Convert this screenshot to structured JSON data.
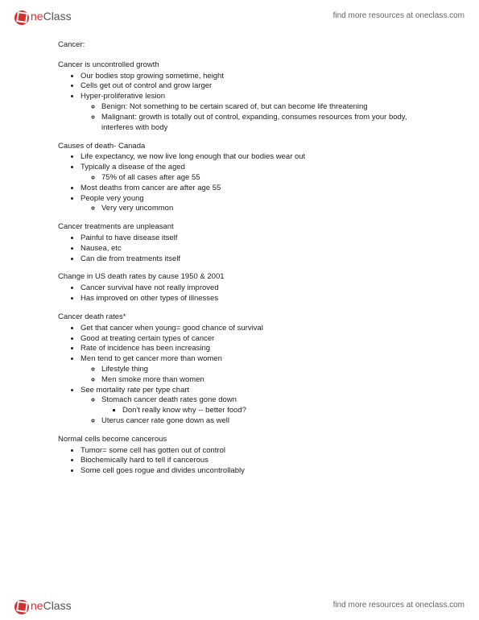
{
  "brand": {
    "one": "ne",
    "class": "Class",
    "tagline": "find more resources at oneclass.com"
  },
  "title": "Cancer:",
  "sections": [
    {
      "heading": "Cancer is uncontrolled growth",
      "items": [
        {
          "t": "Our bodies stop growing sometime, height"
        },
        {
          "t": "Cells get out of control and grow larger"
        },
        {
          "t": "Hyper-proliferative lesion",
          "sub": [
            {
              "t": "Benign: Not something to be certain scared of, but can become life threatening"
            },
            {
              "t": "Malignant: growth is totally out of control, expanding, consumes resources from your body, interferes with body"
            }
          ]
        }
      ]
    },
    {
      "heading": "Causes of death- Canada",
      "items": [
        {
          "t": "Life expectancy, we now live long enough that our bodies wear out"
        },
        {
          "t": "Typically a disease of the aged",
          "sub": [
            {
              "t": "75% of all cases after age 55"
            }
          ]
        },
        {
          "t": "Most deaths from cancer are after age 55"
        },
        {
          "t": "People very young",
          "sub": [
            {
              "t": "Very very uncommon"
            }
          ]
        }
      ]
    },
    {
      "heading": "Cancer treatments are unpleasant",
      "items": [
        {
          "t": "Painful to have disease itself"
        },
        {
          "t": "Nausea, etc"
        },
        {
          "t": "Can die from treatments itself"
        }
      ]
    },
    {
      "heading": "Change in US death rates by cause 1950 & 2001",
      "items": [
        {
          "t": "Cancer survival have not really improved"
        },
        {
          "t": "Has improved on other types of illnesses"
        }
      ]
    },
    {
      "heading": "Cancer death rates*",
      "items": [
        {
          "t": "Get that cancer when young= good chance of survival"
        },
        {
          "t": "Good at treating certain types of cancer"
        },
        {
          "t": "Rate of incidence has been increasing"
        },
        {
          "t": "Men tend to get cancer more than women",
          "sub": [
            {
              "t": "Lifestyle thing"
            },
            {
              "t": "Men smoke more than women"
            }
          ]
        },
        {
          "t": "See mortality rate per type chart",
          "sub": [
            {
              "t": "Stomach cancer death rates gone down",
              "sub": [
                {
                  "t": "Don't really know why -- better food?"
                }
              ]
            },
            {
              "t": "Uterus cancer rate gone down as well"
            }
          ]
        }
      ]
    },
    {
      "heading": "Normal cells become cancerous",
      "items": [
        {
          "t": "Tumor= some cell has gotten out of control"
        },
        {
          "t": "Biochemically hard to tell if cancerous"
        },
        {
          "t": "Some cell goes rogue and divides uncontrollably"
        }
      ]
    }
  ]
}
